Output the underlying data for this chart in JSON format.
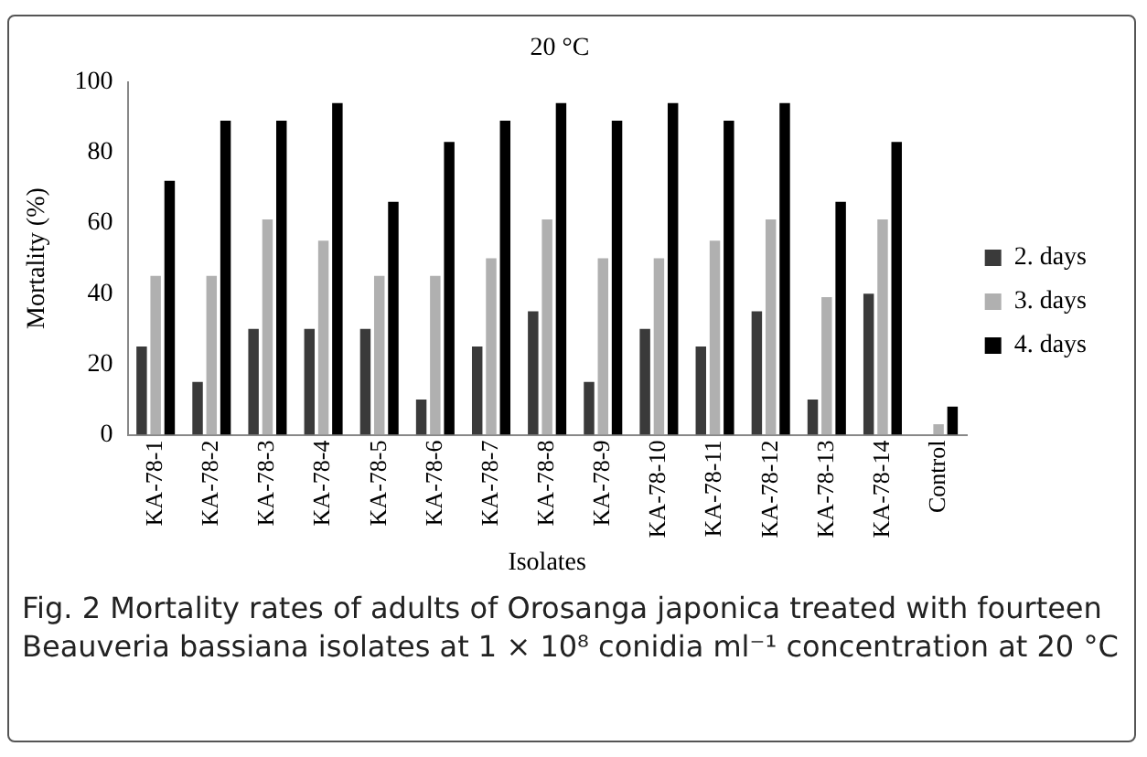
{
  "chart_data": {
    "type": "bar",
    "title": "20 °C",
    "xlabel": "Isolates",
    "ylabel": "Mortality (%)",
    "categories": [
      "KA-78-1",
      "KA-78-2",
      "KA-78-3",
      "KA-78-4",
      "KA-78-5",
      "KA-78-6",
      "KA-78-7",
      "KA-78-8",
      "KA-78-9",
      "KA-78-10",
      "KA-78-11",
      "KA-78-12",
      "KA-78-13",
      "KA-78-14",
      "Control"
    ],
    "series": [
      {
        "name": "2. days",
        "color": "#3a3a3a",
        "values": [
          25,
          15,
          30,
          30,
          30,
          10,
          25,
          35,
          15,
          30,
          25,
          35,
          10,
          40,
          0
        ]
      },
      {
        "name": "3. days",
        "color": "#b0b0b0",
        "values": [
          45,
          45,
          61,
          55,
          45,
          45,
          50,
          61,
          50,
          50,
          55,
          61,
          39,
          61,
          3
        ]
      },
      {
        "name": "4. days",
        "color": "#000000",
        "values": [
          72,
          89,
          89,
          94,
          66,
          83,
          89,
          94,
          89,
          94,
          89,
          94,
          66,
          83,
          8
        ]
      }
    ],
    "ylim": [
      0,
      100
    ],
    "yticks": [
      0,
      20,
      40,
      60,
      80,
      100
    ],
    "grid": false,
    "legend": "right",
    "annotations": [
      "Fig. 2  Mortality rates of adults of Orosanga japonica treated with fourteen Beauveria bassiana isolates at 1 × 10⁸ conidia ml⁻¹ concentration at 20 °C"
    ]
  }
}
